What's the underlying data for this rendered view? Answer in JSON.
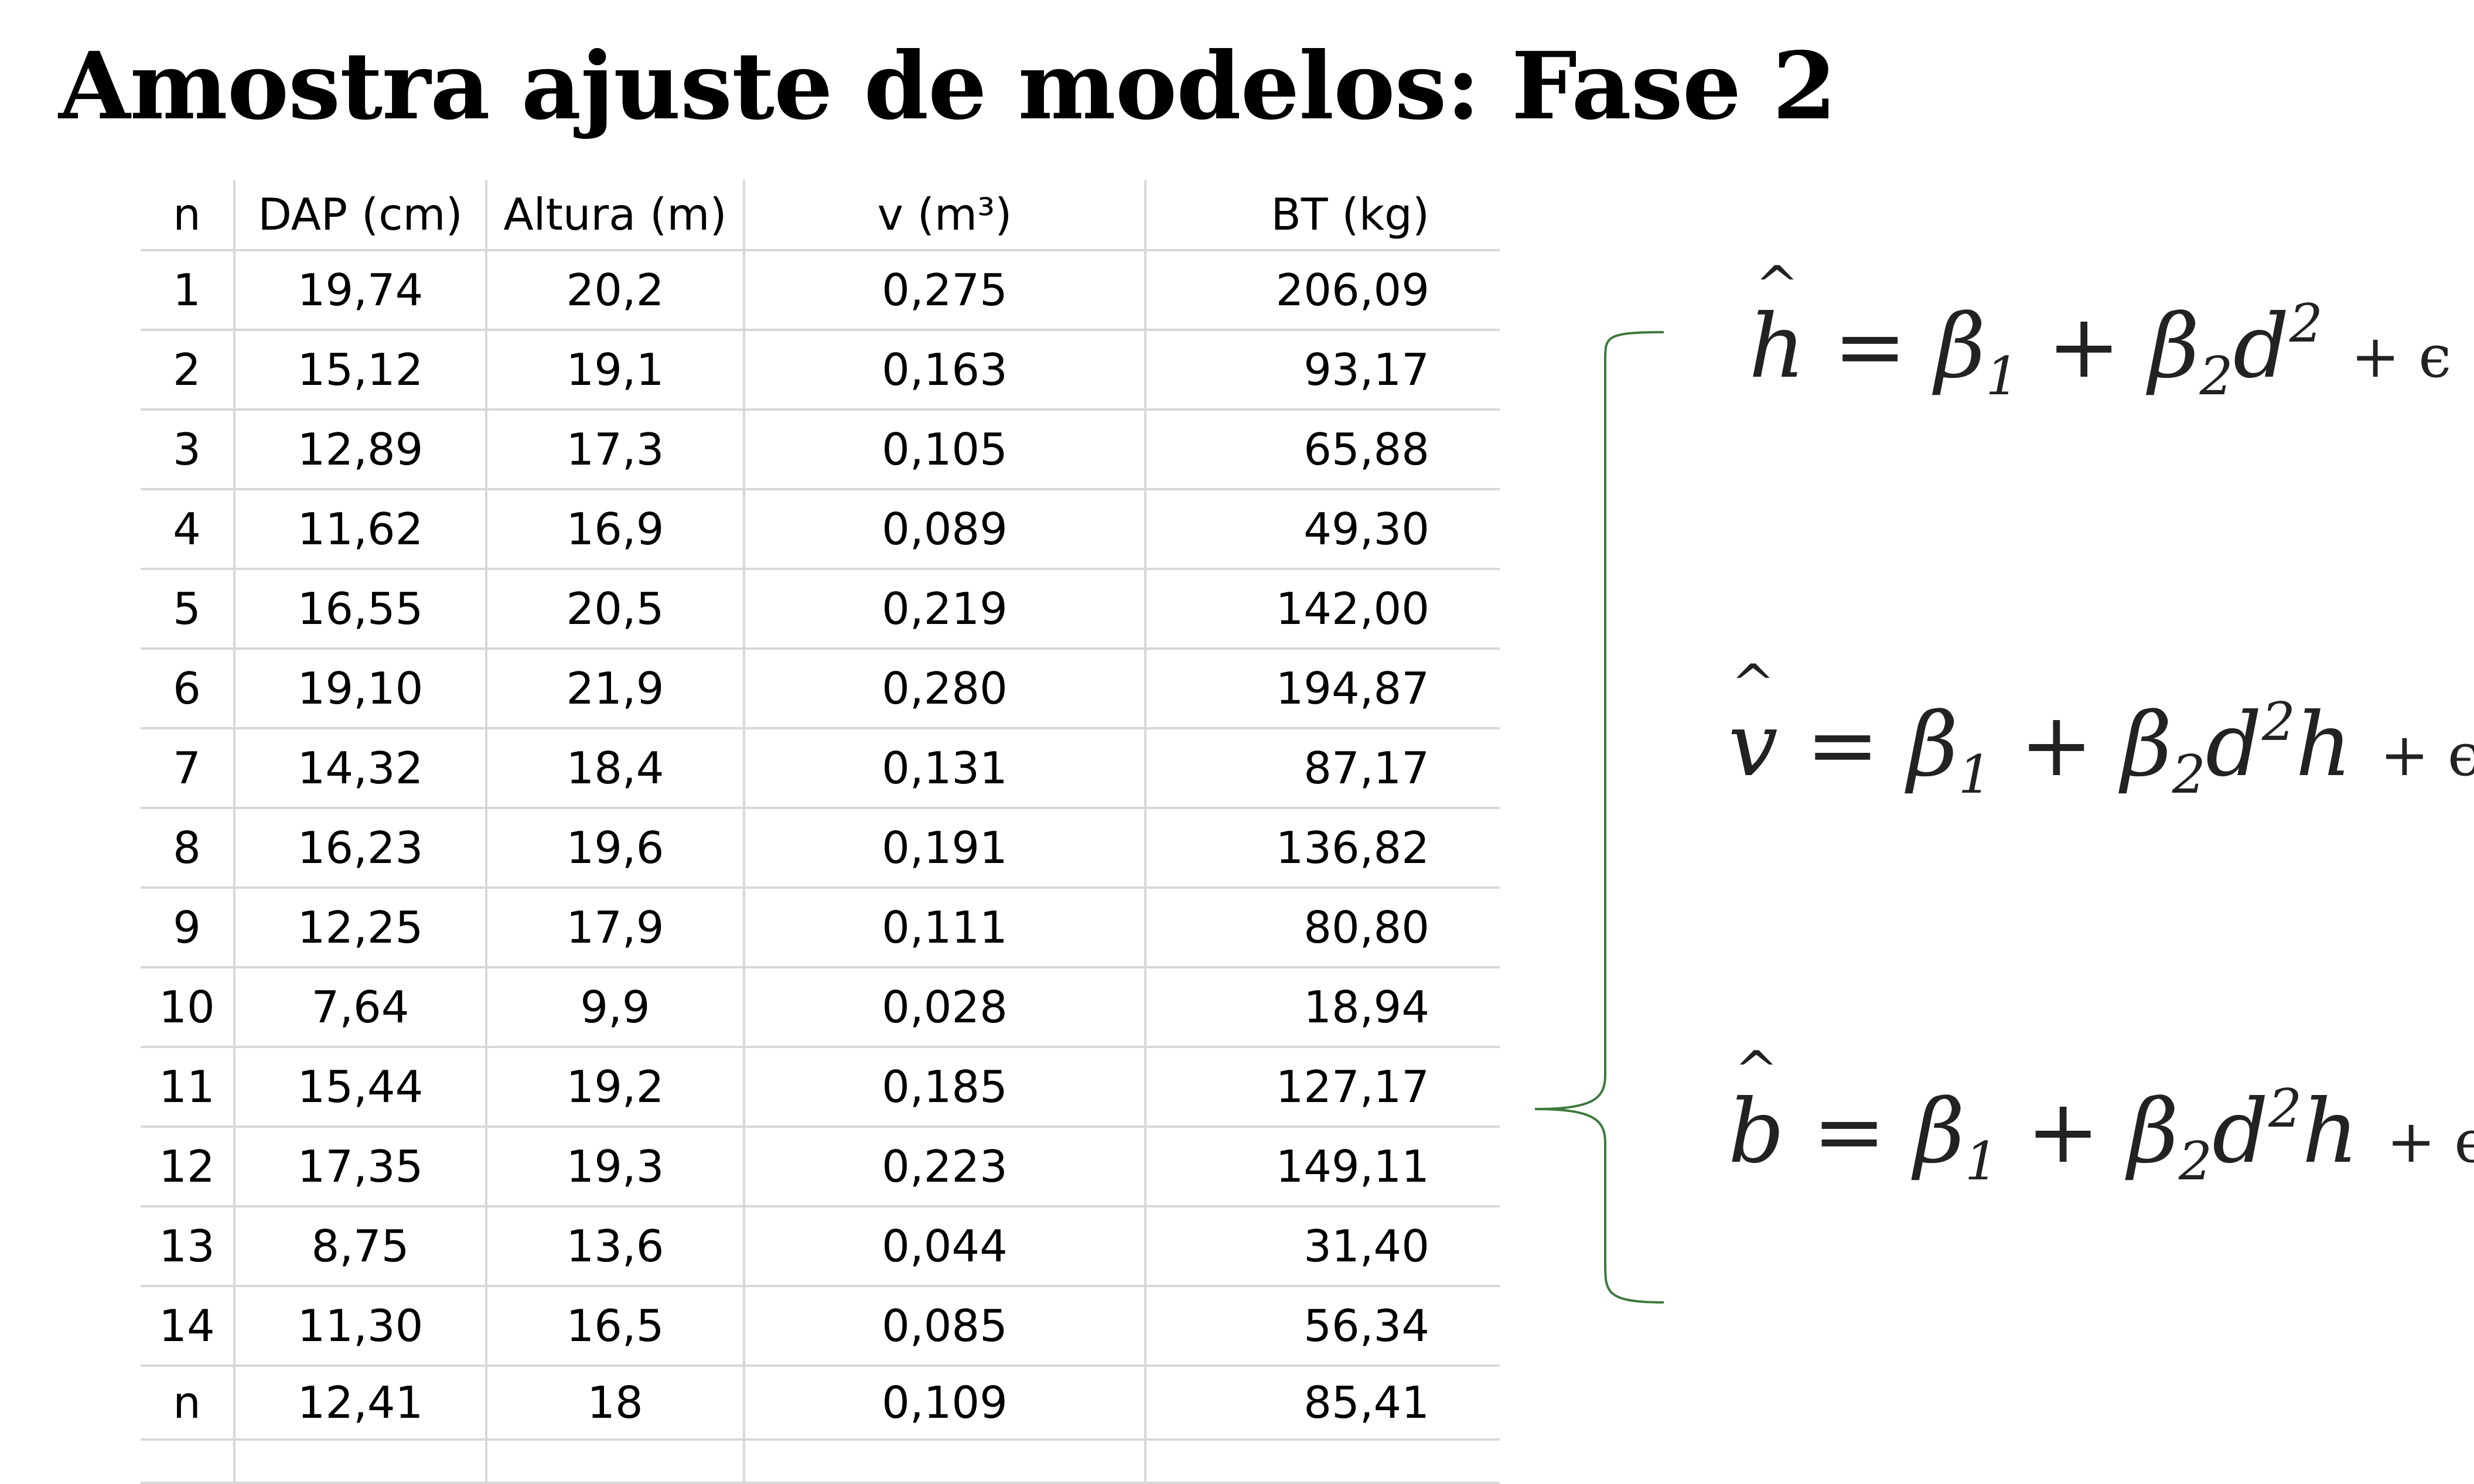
{
  "title": "Amostra ajuste de modelos: Fase 2",
  "table": {
    "headers": [
      "n",
      "DAP (cm)",
      "Altura (m)",
      "v (m³)",
      "BT (kg)"
    ],
    "rows": [
      [
        "1",
        "19,74",
        "20,2",
        "0,275",
        "206,09"
      ],
      [
        "2",
        "15,12",
        "19,1",
        "0,163",
        "93,17"
      ],
      [
        "3",
        "12,89",
        "17,3",
        "0,105",
        "65,88"
      ],
      [
        "4",
        "11,62",
        "16,9",
        "0,089",
        "49,30"
      ],
      [
        "5",
        "16,55",
        "20,5",
        "0,219",
        "142,00"
      ],
      [
        "6",
        "19,10",
        "21,9",
        "0,280",
        "194,87"
      ],
      [
        "7",
        "14,32",
        "18,4",
        "0,131",
        "87,17"
      ],
      [
        "8",
        "16,23",
        "19,6",
        "0,191",
        "136,82"
      ],
      [
        "9",
        "12,25",
        "17,9",
        "0,111",
        "80,80"
      ],
      [
        "10",
        "7,64",
        "9,9",
        "0,028",
        "18,94"
      ],
      [
        "11",
        "15,44",
        "19,2",
        "0,185",
        "127,17"
      ],
      [
        "12",
        "17,35",
        "19,3",
        "0,223",
        "149,11"
      ],
      [
        "13",
        "8,75",
        "13,6",
        "0,044",
        "31,40"
      ],
      [
        "14",
        "11,30",
        "16,5",
        "0,085",
        "56,34"
      ],
      [
        "n",
        "12,41",
        "18",
        "0,109",
        "85,41"
      ]
    ]
  },
  "equations": [
    {
      "lhs": "h",
      "d_exp": "2",
      "tail": "",
      "rest": "+ ϵ"
    },
    {
      "lhs": "v",
      "d_exp": "2",
      "tail": "h",
      "rest": "+ ϵ"
    },
    {
      "lhs": "b",
      "d_exp": "2",
      "tail": "h",
      "rest": "+ ϵ"
    }
  ],
  "symbols": {
    "eq": "=",
    "beta": "β",
    "one": "1",
    "two": "2",
    "plus": "+",
    "d": "d"
  },
  "colors": {
    "brace": "#3c7a3c"
  }
}
